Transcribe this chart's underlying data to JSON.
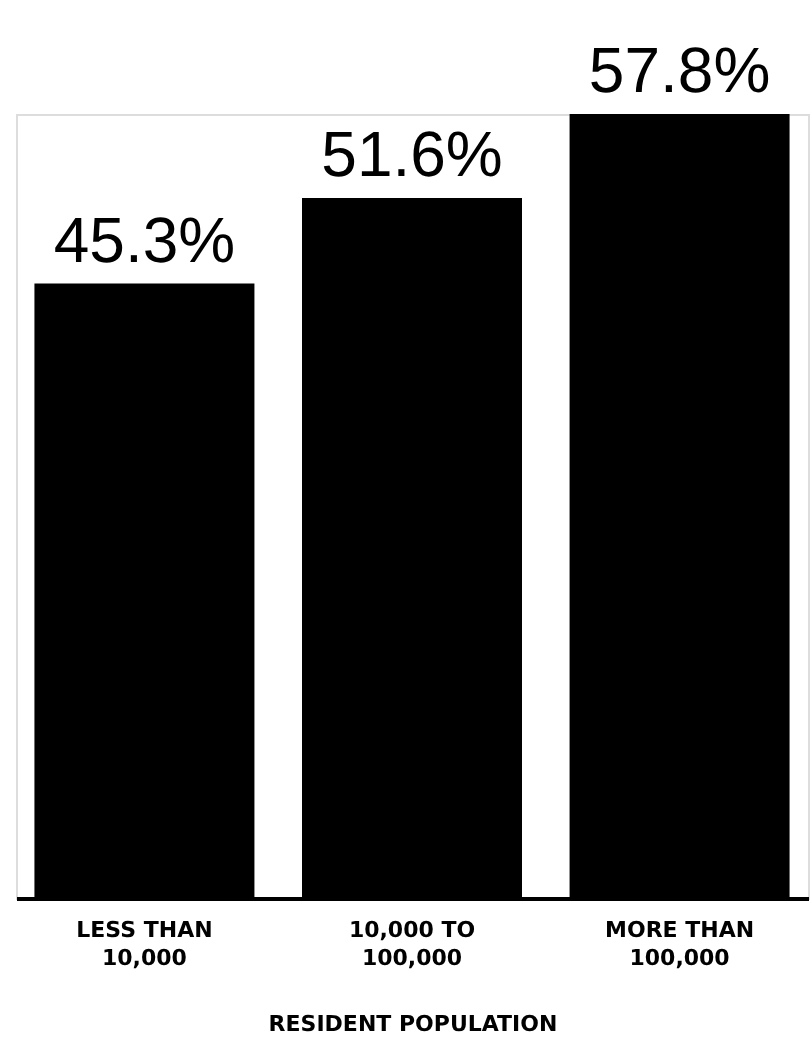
{
  "chart_data": {
    "type": "bar",
    "categories": [
      "LESS THAN\n10,000",
      "10,000 TO\n100,000",
      "MORE THAN\n100,000"
    ],
    "values": [
      45.3,
      51.6,
      57.8
    ],
    "value_labels": [
      "45.3%",
      "51.6%",
      "57.8%"
    ],
    "color": "#000000",
    "xlabel": "RESIDENT POPULATION",
    "tick_labels": "x"
  }
}
